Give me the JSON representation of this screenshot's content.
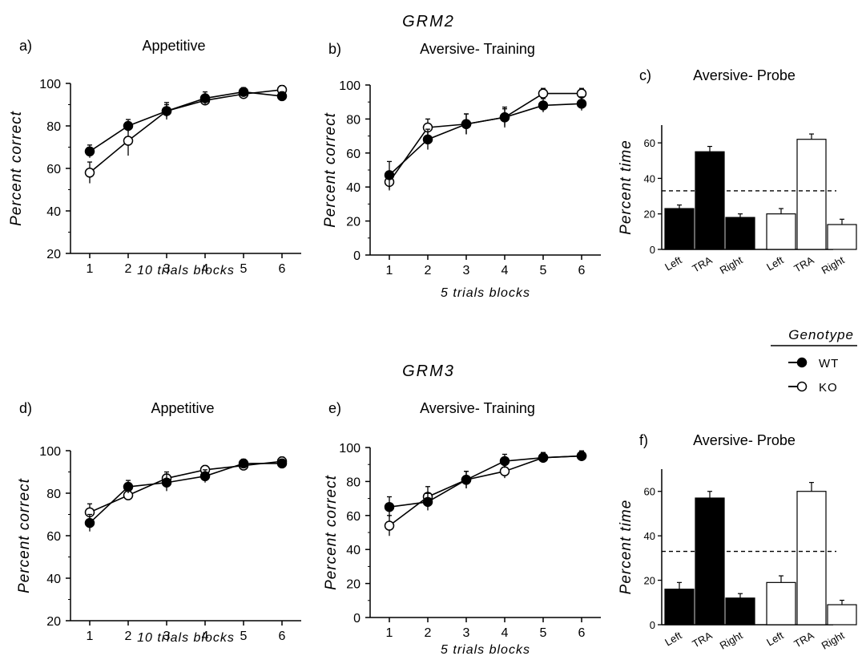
{
  "figure": {
    "sections": [
      "GRM2",
      "GRM3"
    ],
    "legend": {
      "title": "Genotype",
      "items": [
        {
          "label": "WT",
          "marker": "filled"
        },
        {
          "label": "KO",
          "marker": "open"
        }
      ]
    }
  },
  "colors": {
    "wt": "#000000",
    "ko": "#ffffff",
    "line": "#000000"
  },
  "chart_data": [
    {
      "id": "a",
      "panel_label": "a)",
      "type": "line",
      "title": "Appetitive",
      "xlabel": "10 trials blocks",
      "ylabel": "Percent correct",
      "x": [
        1,
        2,
        3,
        4,
        5,
        6
      ],
      "xlim": [
        0.5,
        6.5
      ],
      "ylim": [
        20,
        100
      ],
      "yticks": [
        20,
        40,
        60,
        80,
        100
      ],
      "series": [
        {
          "name": "WT",
          "values": [
            68,
            80,
            87,
            93,
            96,
            94
          ],
          "errors": [
            3,
            3,
            4,
            3,
            2,
            2
          ]
        },
        {
          "name": "KO",
          "values": [
            58,
            73,
            87,
            92,
            95,
            97
          ],
          "errors": [
            5,
            7,
            3,
            2,
            2,
            2
          ]
        }
      ]
    },
    {
      "id": "b",
      "panel_label": "b)",
      "type": "line",
      "title": "Aversive- Training",
      "xlabel": "5 trials blocks",
      "ylabel": "Percent correct",
      "x": [
        1,
        2,
        3,
        4,
        5,
        6
      ],
      "xlim": [
        0.5,
        6.5
      ],
      "ylim": [
        0,
        100
      ],
      "yticks": [
        0,
        20,
        40,
        60,
        80,
        100
      ],
      "series": [
        {
          "name": "WT",
          "values": [
            47,
            68,
            77,
            81,
            88,
            89
          ],
          "errors": [
            8,
            6,
            6,
            6,
            4,
            4
          ]
        },
        {
          "name": "KO",
          "values": [
            43,
            75,
            77,
            81,
            95,
            95
          ],
          "errors": [
            5,
            5,
            6,
            5,
            3,
            3
          ]
        }
      ]
    },
    {
      "id": "c",
      "panel_label": "c)",
      "type": "bar",
      "title": "Aversive- Probe",
      "ylabel": "Percent time",
      "ylim": [
        0,
        70
      ],
      "yticks": [
        0,
        20,
        40,
        60
      ],
      "reference_line": 33,
      "categories": [
        "Left",
        "TRA",
        "Right",
        "Left",
        "TRA",
        "Right"
      ],
      "groups": [
        "WT",
        "WT",
        "WT",
        "KO",
        "KO",
        "KO"
      ],
      "values": [
        23,
        55,
        18,
        20,
        62,
        14
      ],
      "errors": [
        2,
        3,
        2,
        3,
        3,
        3
      ]
    },
    {
      "id": "d",
      "panel_label": "d)",
      "type": "line",
      "title": "Appetitive",
      "xlabel": "10 trials blocks",
      "ylabel": "Percent correct",
      "x": [
        1,
        2,
        3,
        4,
        5,
        6
      ],
      "xlim": [
        0.5,
        6.5
      ],
      "ylim": [
        20,
        100
      ],
      "yticks": [
        20,
        40,
        60,
        80,
        100
      ],
      "series": [
        {
          "name": "WT",
          "values": [
            66,
            83,
            85,
            88,
            94,
            94
          ],
          "errors": [
            4,
            3,
            4,
            3,
            2,
            2
          ]
        },
        {
          "name": "KO",
          "values": [
            71,
            79,
            87,
            91,
            93,
            95
          ],
          "errors": [
            4,
            2,
            3,
            2,
            2,
            2
          ]
        }
      ]
    },
    {
      "id": "e",
      "panel_label": "e)",
      "type": "line",
      "title": "Aversive- Training",
      "xlabel": "5 trials blocks",
      "ylabel": "Percent correct",
      "x": [
        1,
        2,
        3,
        4,
        5,
        6
      ],
      "xlim": [
        0.5,
        6.5
      ],
      "ylim": [
        0,
        100
      ],
      "yticks": [
        0,
        20,
        40,
        60,
        80,
        100
      ],
      "series": [
        {
          "name": "WT",
          "values": [
            65,
            68,
            81,
            92,
            94,
            95
          ],
          "errors": [
            6,
            5,
            5,
            4,
            3,
            3
          ]
        },
        {
          "name": "KO",
          "values": [
            54,
            71,
            81,
            86,
            94,
            95
          ],
          "errors": [
            6,
            6,
            5,
            4,
            3,
            3
          ]
        }
      ]
    },
    {
      "id": "f",
      "panel_label": "f)",
      "type": "bar",
      "title": "Aversive- Probe",
      "ylabel": "Percent time",
      "ylim": [
        0,
        70
      ],
      "yticks": [
        0,
        20,
        40,
        60
      ],
      "reference_line": 33,
      "categories": [
        "Left",
        "TRA",
        "Right",
        "Left",
        "TRA",
        "Right"
      ],
      "groups": [
        "WT",
        "WT",
        "WT",
        "KO",
        "KO",
        "KO"
      ],
      "values": [
        16,
        57,
        12,
        19,
        60,
        9
      ],
      "errors": [
        3,
        3,
        2,
        3,
        4,
        2
      ]
    }
  ]
}
